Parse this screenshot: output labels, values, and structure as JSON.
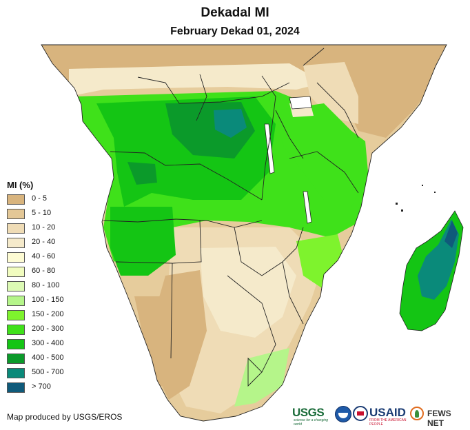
{
  "title": "Dekadal MI",
  "subtitle": "February Dekad 01, 2024",
  "legend": {
    "title": "MI (%)",
    "items": [
      {
        "label": "0 - 5",
        "color": "#d8b47e"
      },
      {
        "label": "5 - 10",
        "color": "#e3c796"
      },
      {
        "label": "10 - 20",
        "color": "#efdcb6"
      },
      {
        "label": "20 - 40",
        "color": "#f5eacb"
      },
      {
        "label": "40 - 60",
        "color": "#fdfbd3"
      },
      {
        "label": "60 - 80",
        "color": "#f1fcbf"
      },
      {
        "label": "80 - 100",
        "color": "#dcfab4"
      },
      {
        "label": "100 - 150",
        "color": "#b5f58a"
      },
      {
        "label": "150 - 200",
        "color": "#7ef32d"
      },
      {
        "label": "200 - 300",
        "color": "#3fe11a"
      },
      {
        "label": "300 - 400",
        "color": "#14c514"
      },
      {
        "label": "400 - 500",
        "color": "#0b9a2a"
      },
      {
        "label": "500 - 700",
        "color": "#0a8a7a"
      },
      {
        "label": "> 700",
        "color": "#0f5a7a"
      }
    ]
  },
  "credit": "Map produced by USGS/EROS",
  "logos": {
    "usgs": "USGS",
    "usgs_tagline": "science for a changing world",
    "noaa_icon": "noaa-logo-icon",
    "usaid_seal_icon": "usaid-seal-icon",
    "usaid": "USAID",
    "usaid_tagline": "FROM THE AMERICAN PEOPLE",
    "fews_icon": "fews-net-logo-icon",
    "fews": "FEWS NET"
  },
  "map": {
    "region_colors": {
      "ocean": "#ffffff",
      "desert": "#d8b47e",
      "dry": "#e3c796",
      "semi_dry": "#efdcb6",
      "moderate": "#f5eacb",
      "light_green": "#b5f58a",
      "green": "#3fe11a",
      "dark_green": "#14c514",
      "teal": "#0a8a7a",
      "deep_teal": "#0f5a7a",
      "border": "#222222"
    }
  }
}
